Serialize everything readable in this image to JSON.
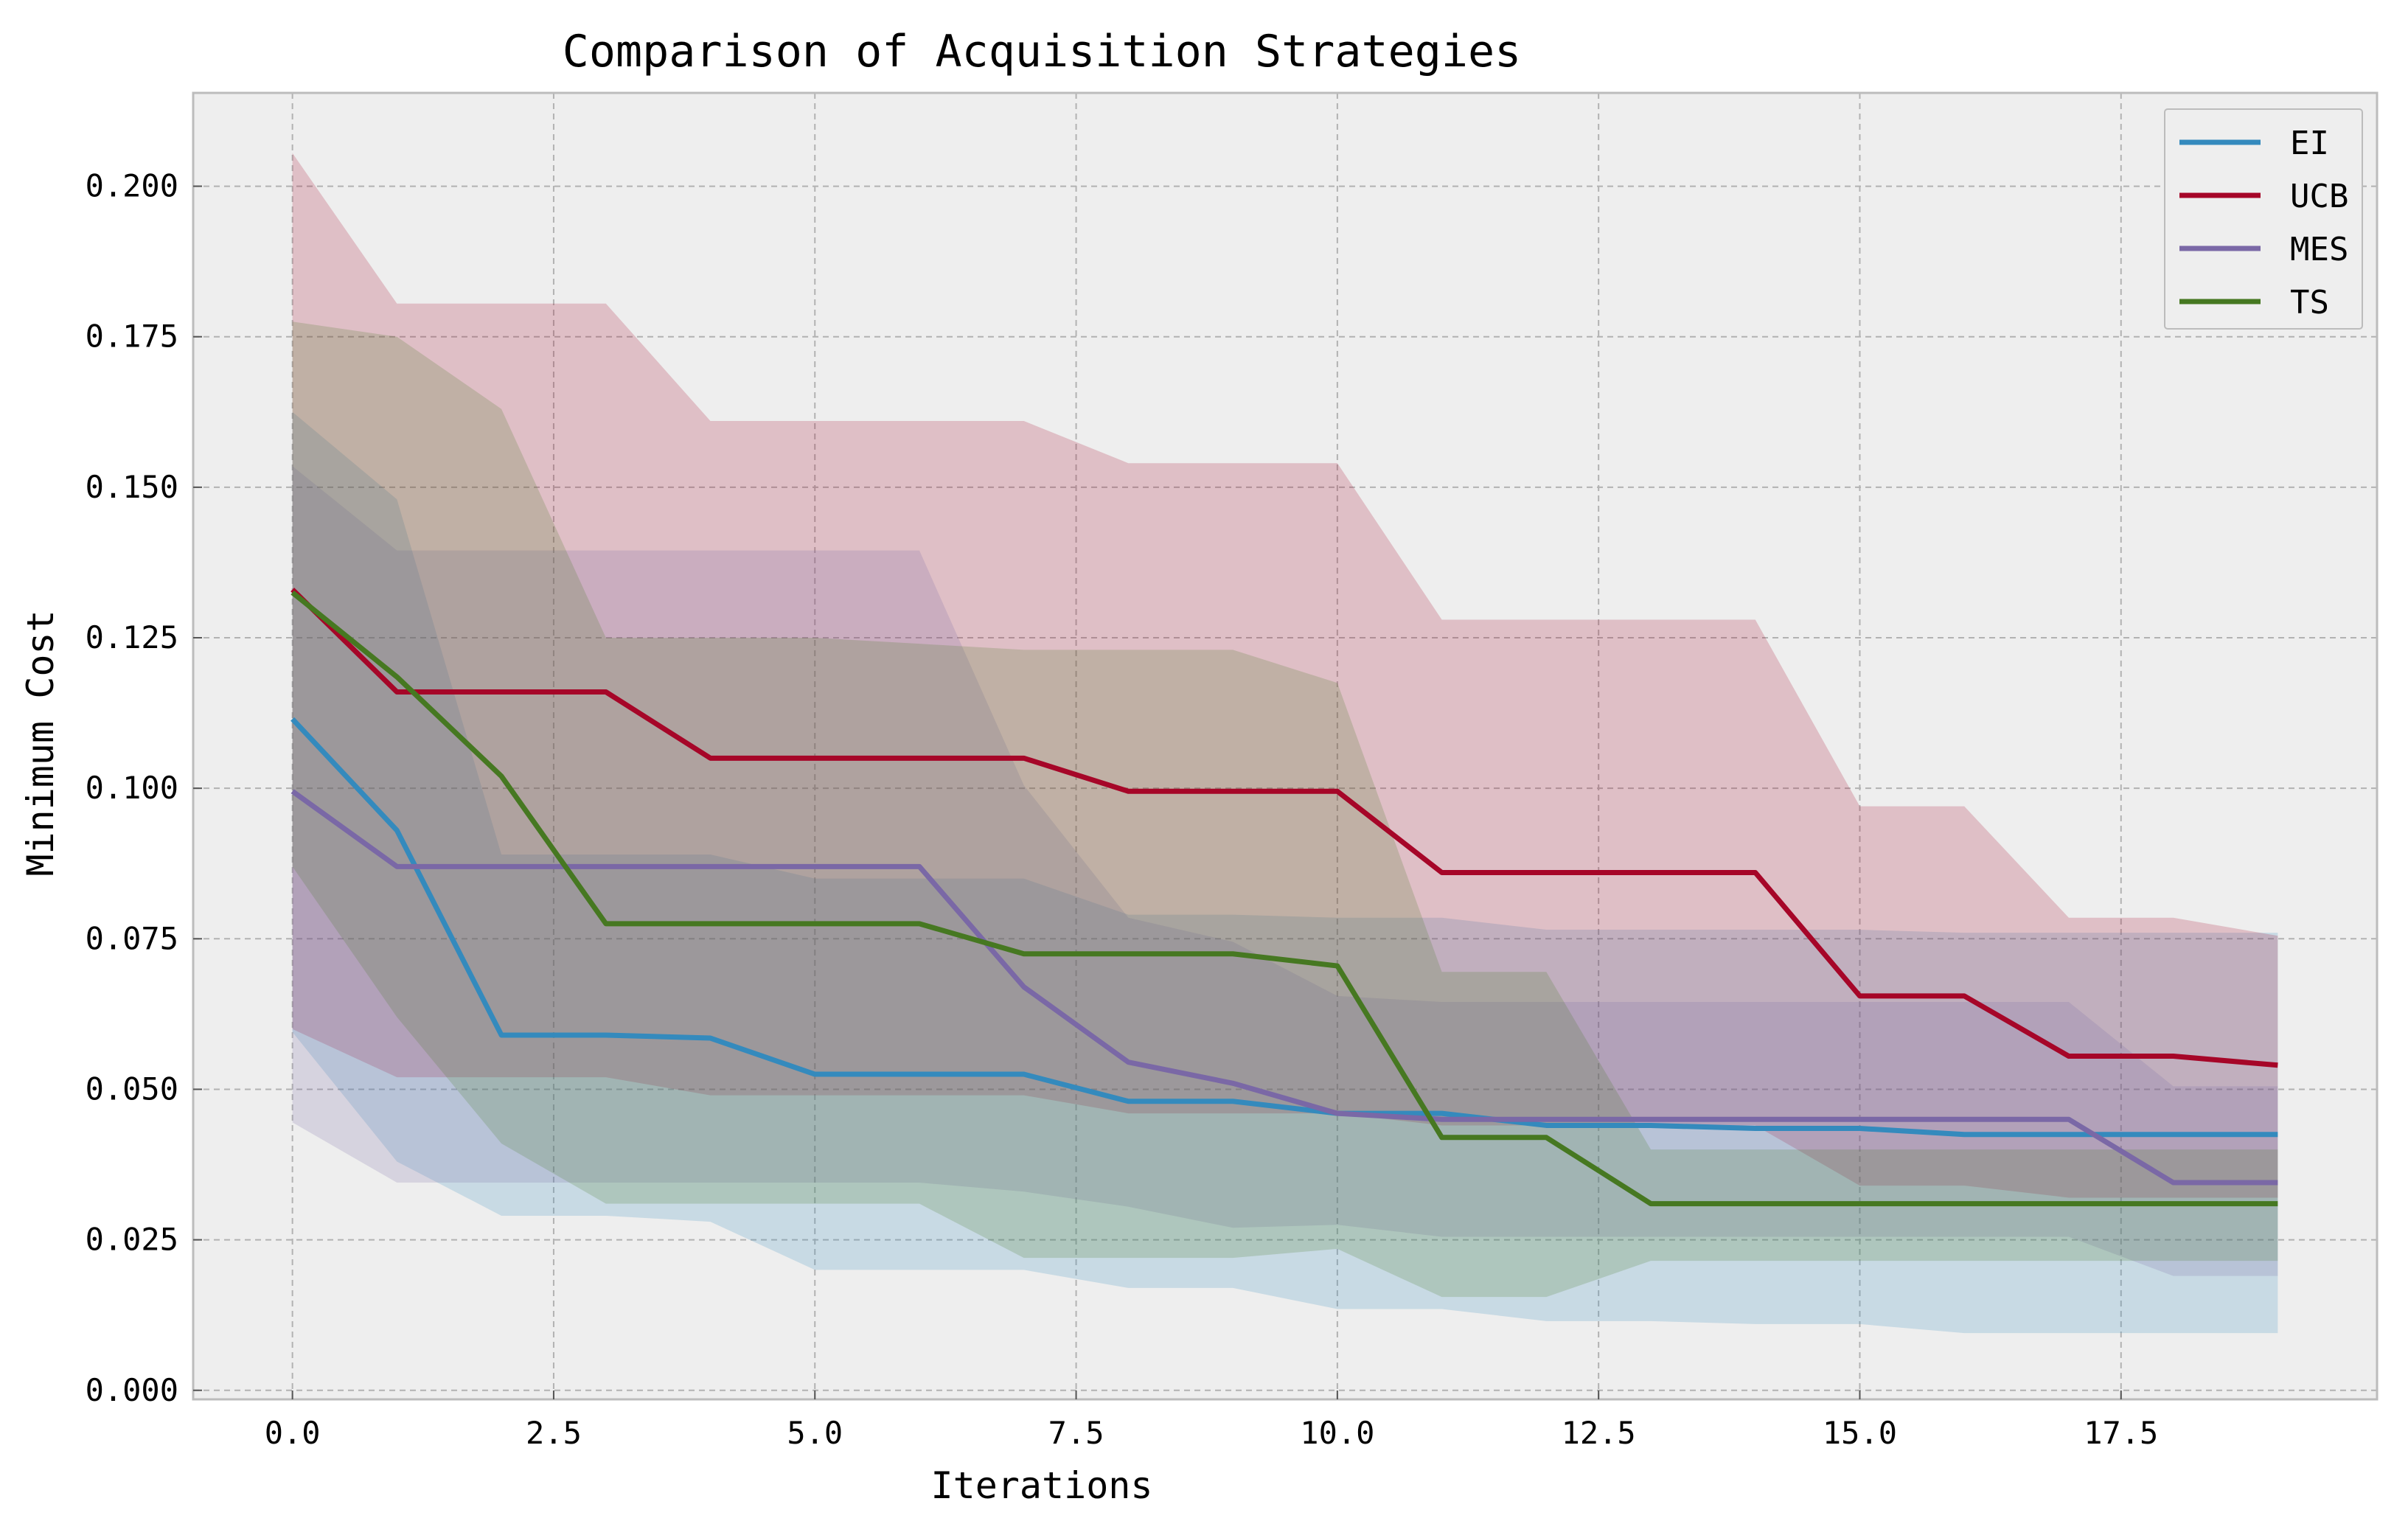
{
  "chart_data": {
    "type": "line",
    "title": "Comparison of Acquisition Strategies",
    "xlabel": "Iterations",
    "ylabel": "Minimum Cost",
    "xlim": [
      -0.95,
      19.95
    ],
    "ylim": [
      -0.0015,
      0.2155
    ],
    "xticks": [
      0,
      2.5,
      5,
      7.5,
      10,
      12.5,
      15,
      17.5
    ],
    "xtick_labels": [
      "0.0",
      "2.5",
      "5.0",
      "7.5",
      "10.0",
      "12.5",
      "15.0",
      "17.5"
    ],
    "yticks": [
      0,
      0.025,
      0.05,
      0.075,
      0.1,
      0.125,
      0.15,
      0.175,
      0.2
    ],
    "ytick_labels": [
      "0.000",
      "0.025",
      "0.050",
      "0.075",
      "0.100",
      "0.125",
      "0.150",
      "0.175",
      "0.200"
    ],
    "grid": true,
    "legend_position": "top-right",
    "x": [
      0,
      1,
      2,
      3,
      4,
      5,
      6,
      7,
      8,
      9,
      10,
      11,
      12,
      13,
      14,
      15,
      16,
      17,
      18,
      19
    ],
    "series": [
      {
        "name": "EI",
        "color": "#348ABD",
        "values": [
          0.1115,
          0.093,
          0.059,
          0.059,
          0.0585,
          0.0525,
          0.0525,
          0.0525,
          0.048,
          0.048,
          0.046,
          0.046,
          0.044,
          0.044,
          0.0435,
          0.0435,
          0.0425,
          0.0425,
          0.0425,
          0.0425
        ],
        "lower": [
          0.0595,
          0.038,
          0.029,
          0.029,
          0.028,
          0.02,
          0.02,
          0.02,
          0.017,
          0.017,
          0.0135,
          0.0135,
          0.0115,
          0.0115,
          0.011,
          0.011,
          0.0095,
          0.0095,
          0.0095,
          0.0095
        ],
        "upper": [
          0.1625,
          0.148,
          0.089,
          0.089,
          0.089,
          0.085,
          0.085,
          0.085,
          0.079,
          0.079,
          0.0785,
          0.0785,
          0.0765,
          0.0765,
          0.0765,
          0.0765,
          0.076,
          0.076,
          0.076,
          0.076
        ]
      },
      {
        "name": "UCB",
        "color": "#A60628",
        "values": [
          0.133,
          0.116,
          0.116,
          0.116,
          0.105,
          0.105,
          0.105,
          0.105,
          0.0995,
          0.0995,
          0.0995,
          0.086,
          0.086,
          0.086,
          0.086,
          0.0655,
          0.0655,
          0.0555,
          0.0555,
          0.054
        ],
        "lower": [
          0.06,
          0.052,
          0.052,
          0.052,
          0.049,
          0.049,
          0.049,
          0.049,
          0.046,
          0.046,
          0.046,
          0.044,
          0.044,
          0.044,
          0.044,
          0.034,
          0.034,
          0.032,
          0.032,
          0.032
        ],
        "upper": [
          0.2055,
          0.1805,
          0.1805,
          0.1805,
          0.161,
          0.161,
          0.161,
          0.161,
          0.154,
          0.154,
          0.154,
          0.128,
          0.128,
          0.128,
          0.128,
          0.097,
          0.097,
          0.0785,
          0.0785,
          0.0755
        ]
      },
      {
        "name": "MES",
        "color": "#7A68A6",
        "values": [
          0.0995,
          0.087,
          0.087,
          0.087,
          0.087,
          0.087,
          0.087,
          0.067,
          0.0545,
          0.051,
          0.046,
          0.045,
          0.045,
          0.045,
          0.045,
          0.045,
          0.045,
          0.045,
          0.0345,
          0.0345
        ],
        "lower": [
          0.0445,
          0.0345,
          0.0345,
          0.0345,
          0.0345,
          0.0345,
          0.0345,
          0.033,
          0.0305,
          0.027,
          0.0275,
          0.0255,
          0.0255,
          0.0255,
          0.0255,
          0.0255,
          0.0255,
          0.0255,
          0.019,
          0.019
        ],
        "upper": [
          0.1535,
          0.1395,
          0.1395,
          0.1395,
          0.1395,
          0.1395,
          0.1395,
          0.1005,
          0.0785,
          0.0745,
          0.0655,
          0.0645,
          0.0645,
          0.0645,
          0.0645,
          0.0645,
          0.0645,
          0.0645,
          0.0505,
          0.0505
        ]
      },
      {
        "name": "TS",
        "color": "#467821",
        "values": [
          0.1325,
          0.1185,
          0.102,
          0.0775,
          0.0775,
          0.0775,
          0.0775,
          0.0725,
          0.0725,
          0.0725,
          0.0705,
          0.042,
          0.042,
          0.031,
          0.031,
          0.031,
          0.031,
          0.031,
          0.031,
          0.031
        ],
        "lower": [
          0.087,
          0.062,
          0.041,
          0.031,
          0.031,
          0.031,
          0.031,
          0.022,
          0.022,
          0.022,
          0.0235,
          0.0155,
          0.0155,
          0.0215,
          0.0215,
          0.0215,
          0.0215,
          0.0215,
          0.0215,
          0.0215
        ],
        "upper": [
          0.1775,
          0.175,
          0.163,
          0.125,
          0.125,
          0.125,
          0.124,
          0.123,
          0.123,
          0.123,
          0.1175,
          0.0695,
          0.0695,
          0.04,
          0.04,
          0.04,
          0.04,
          0.04,
          0.04,
          0.04
        ]
      }
    ]
  }
}
